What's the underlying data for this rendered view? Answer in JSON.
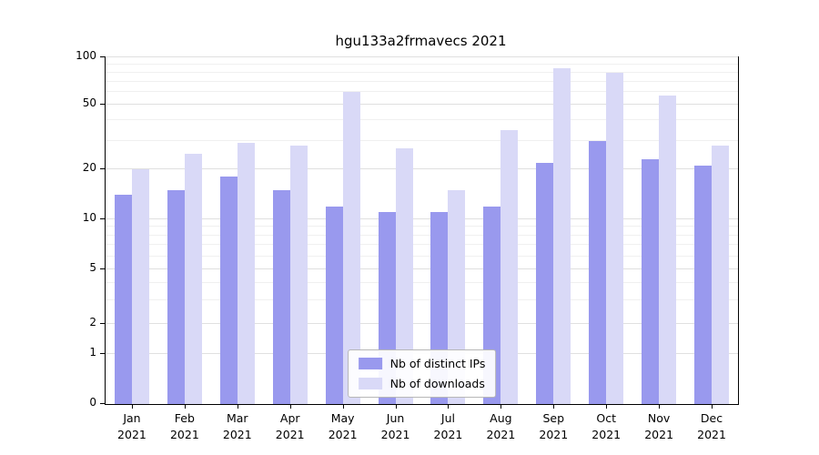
{
  "chart_data": {
    "type": "bar",
    "title": "hgu133a2frmavecs 2021",
    "months": [
      "Jan",
      "Feb",
      "Mar",
      "Apr",
      "May",
      "Jun",
      "Jul",
      "Aug",
      "Sep",
      "Oct",
      "Nov",
      "Dec"
    ],
    "year": "2021",
    "series": [
      {
        "name": "Nb of distinct IPs",
        "color": "#9999ee",
        "values": [
          14,
          15,
          18,
          15,
          12,
          11,
          11,
          12,
          22,
          30,
          23,
          21
        ]
      },
      {
        "name": "Nb of downloads",
        "color": "#d9d9f7",
        "values": [
          20,
          25,
          29,
          28,
          60,
          27,
          15,
          35,
          85,
          80,
          57,
          28
        ]
      }
    ],
    "y_axis": {
      "scale": "log-like",
      "ylim": [
        0,
        100
      ],
      "ticks": [
        0,
        1,
        2,
        5,
        10,
        20,
        50,
        100
      ],
      "minor_ticks": [
        3,
        4,
        6,
        7,
        8,
        9,
        30,
        40,
        60,
        70,
        80,
        90
      ],
      "anchors": [
        [
          0,
          0
        ],
        [
          1,
          0.144
        ],
        [
          2,
          0.231
        ],
        [
          5,
          0.388
        ],
        [
          10,
          0.533
        ],
        [
          20,
          0.677
        ],
        [
          50,
          0.863
        ],
        [
          100,
          1.0
        ]
      ]
    },
    "grid": "horizontal",
    "legend_position": "lower center"
  }
}
